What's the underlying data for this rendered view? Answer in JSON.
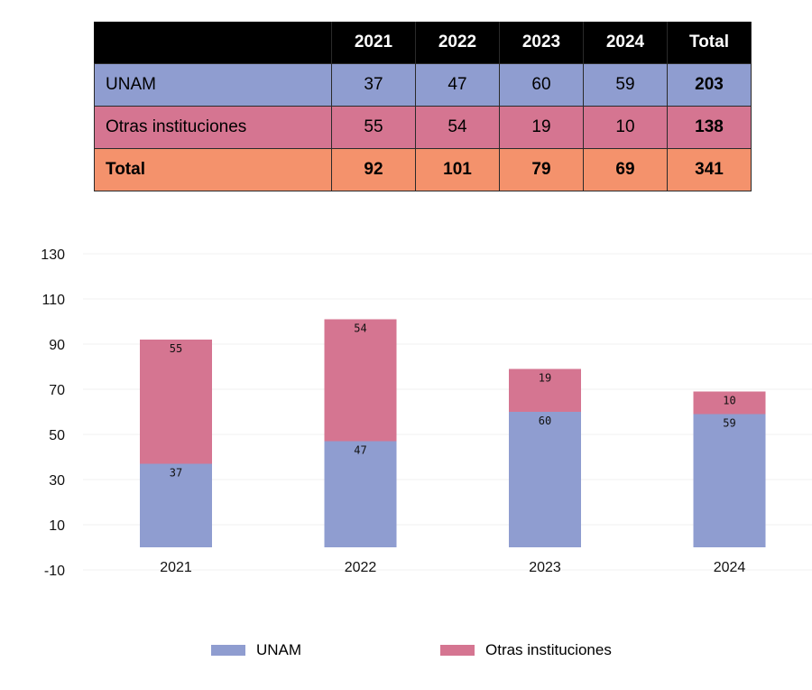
{
  "table": {
    "headers": [
      "",
      "2021",
      "2022",
      "2023",
      "2024",
      "Total"
    ],
    "rows": [
      {
        "label": "UNAM",
        "values": [
          "37",
          "47",
          "60",
          "59"
        ],
        "total": "203"
      },
      {
        "label": "Otras instituciones",
        "values": [
          "55",
          "54",
          "19",
          "10"
        ],
        "total": "138"
      },
      {
        "label": "Total",
        "values": [
          "92",
          "101",
          "79",
          "69"
        ],
        "total": "341"
      }
    ]
  },
  "colors": {
    "unam": "#8f9dd0",
    "otras": "#d57591",
    "total": "#f4926c",
    "header": "#000000"
  },
  "chart_data": {
    "type": "bar",
    "stacked": true,
    "categories": [
      "2021",
      "2022",
      "2023",
      "2024"
    ],
    "series": [
      {
        "name": "UNAM",
        "values": [
          37,
          47,
          60,
          59
        ],
        "color": "#8f9dd0"
      },
      {
        "name": "Otras instituciones",
        "values": [
          55,
          54,
          19,
          10
        ],
        "color": "#d57591"
      }
    ],
    "yticks": [
      -10,
      10,
      30,
      50,
      70,
      90,
      110,
      130
    ],
    "ylim": [
      -10,
      130
    ],
    "grid": true,
    "legend": "bottom"
  }
}
